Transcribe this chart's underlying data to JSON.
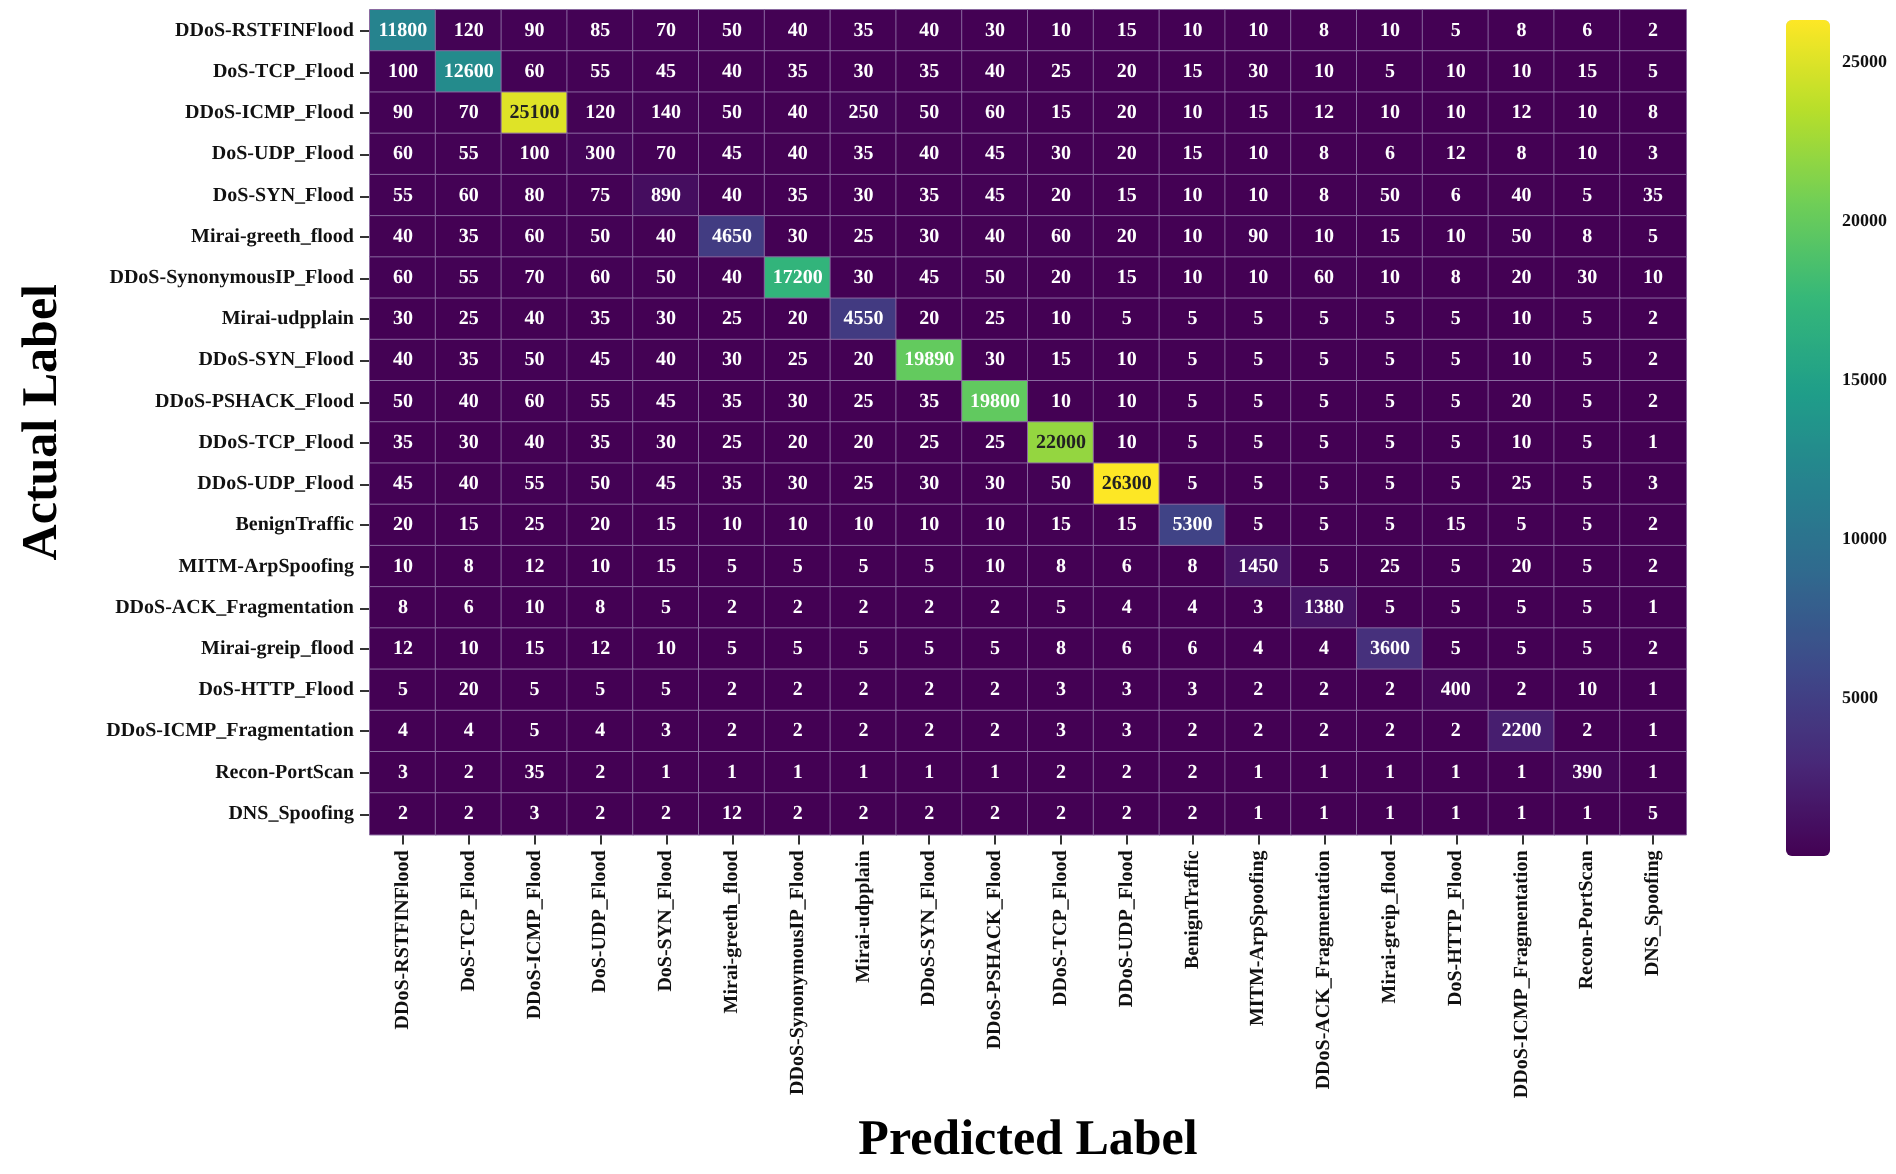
{
  "chart_data": {
    "type": "heatmap",
    "xlabel": "Predicted Label",
    "ylabel": "Actual Label",
    "categories": [
      "DDoS-RSTFINFlood",
      "DoS-TCP_Flood",
      "DDoS-ICMP_Flood",
      "DoS-UDP_Flood",
      "DoS-SYN_Flood",
      "Mirai-greeth_flood",
      "DDoS-SynonymousIP_Flood",
      "Mirai-udpplain",
      "DDoS-SYN_Flood",
      "DDoS-PSHACK_Flood",
      "DDoS-TCP_Flood",
      "DDoS-UDP_Flood",
      "BenignTraffic",
      "MITM-ArpSpoofing",
      "DDoS-ACK_Fragmentation",
      "Mirai-greip_flood",
      "DoS-HTTP_Flood",
      "DDoS-ICMP_Fragmentation",
      "Recon-PortScan",
      "DNS_Spoofing"
    ],
    "y_categories": [
      "DDoS-RSTFINFlood",
      "DoS-TCP_Flood",
      "DDoS-ICMP_Flood",
      "DoS-UDP_Flood",
      "DoS-SYN_Flood",
      "Mirai-greeth_flood",
      "DDoS-SynonymousIP_Flood",
      "Mirai-udpplain",
      "DDoS-SYN_Flood",
      "DDoS-PSHACK_Flood",
      "DDoS-TCP_Flood",
      "DDoS-UDP_Flood",
      "BenignTraffic",
      "MITM-ArpSpoofing",
      "DDoS-ACK_Fragmentation",
      "Mirai-greip_flood",
      "DoS-HTTP_Flood",
      "DDoS-ICMP_Fragmentation",
      "Recon-PortScan",
      "DNS_Spoofing"
    ],
    "cells": [
      [
        11800,
        120,
        90,
        85,
        70,
        50,
        40,
        35,
        40,
        30,
        10,
        15,
        10,
        10,
        8,
        10,
        5,
        8,
        6,
        2
      ],
      [
        100,
        12600,
        60,
        55,
        45,
        40,
        35,
        30,
        35,
        40,
        25,
        20,
        15,
        30,
        10,
        5,
        10,
        10,
        15,
        5
      ],
      [
        90,
        70,
        25100,
        120,
        140,
        50,
        40,
        250,
        50,
        60,
        15,
        20,
        10,
        15,
        12,
        10,
        10,
        12,
        10,
        8
      ],
      [
        60,
        55,
        100,
        300,
        70,
        45,
        40,
        35,
        40,
        45,
        30,
        20,
        15,
        10,
        8,
        6,
        12,
        8,
        10,
        3
      ],
      [
        55,
        60,
        80,
        75,
        890,
        40,
        35,
        30,
        35,
        45,
        20,
        15,
        10,
        10,
        8,
        50,
        6,
        40,
        5,
        35
      ],
      [
        40,
        35,
        60,
        50,
        40,
        4650,
        30,
        25,
        30,
        40,
        60,
        20,
        10,
        90,
        10,
        15,
        10,
        50,
        8,
        5
      ],
      [
        60,
        55,
        70,
        60,
        50,
        40,
        17200,
        30,
        45,
        50,
        20,
        15,
        10,
        10,
        60,
        10,
        8,
        20,
        30,
        10
      ],
      [
        30,
        25,
        40,
        35,
        30,
        25,
        20,
        4550,
        20,
        25,
        10,
        5,
        5,
        5,
        5,
        5,
        5,
        10,
        5,
        2
      ],
      [
        40,
        35,
        50,
        45,
        40,
        30,
        25,
        20,
        19890,
        30,
        15,
        10,
        5,
        5,
        5,
        5,
        5,
        10,
        5,
        2
      ],
      [
        50,
        40,
        60,
        55,
        45,
        35,
        30,
        25,
        35,
        19800,
        10,
        10,
        5,
        5,
        5,
        5,
        5,
        20,
        5,
        2
      ],
      [
        35,
        30,
        40,
        35,
        30,
        25,
        20,
        20,
        25,
        25,
        22000,
        10,
        5,
        5,
        5,
        5,
        5,
        10,
        5,
        1
      ],
      [
        45,
        40,
        55,
        50,
        45,
        35,
        30,
        25,
        30,
        30,
        50,
        26300,
        5,
        5,
        5,
        5,
        5,
        25,
        5,
        3
      ],
      [
        20,
        15,
        25,
        20,
        15,
        10,
        10,
        10,
        10,
        10,
        15,
        15,
        5300,
        5,
        5,
        5,
        15,
        5,
        5,
        2
      ],
      [
        10,
        8,
        12,
        10,
        15,
        5,
        5,
        5,
        5,
        10,
        8,
        6,
        8,
        1450,
        5,
        25,
        5,
        20,
        5,
        2
      ],
      [
        8,
        6,
        10,
        8,
        5,
        2,
        2,
        2,
        2,
        2,
        5,
        4,
        4,
        3,
        1380,
        5,
        5,
        5,
        5,
        1
      ],
      [
        12,
        10,
        15,
        12,
        10,
        5,
        5,
        5,
        5,
        5,
        8,
        6,
        6,
        4,
        4,
        3600,
        5,
        5,
        5,
        2
      ],
      [
        5,
        20,
        5,
        5,
        5,
        2,
        2,
        2,
        2,
        2,
        3,
        3,
        3,
        2,
        2,
        2,
        400,
        2,
        10,
        1
      ],
      [
        4,
        4,
        5,
        4,
        3,
        2,
        2,
        2,
        2,
        2,
        3,
        3,
        2,
        2,
        2,
        2,
        2,
        2200,
        2,
        1
      ],
      [
        3,
        2,
        35,
        2,
        1,
        1,
        1,
        1,
        1,
        1,
        2,
        2,
        2,
        1,
        1,
        1,
        1,
        1,
        390,
        1
      ],
      [
        2,
        2,
        3,
        2,
        2,
        12,
        2,
        2,
        2,
        2,
        2,
        2,
        2,
        1,
        1,
        1,
        1,
        1,
        1,
        5
      ]
    ],
    "clim": [
      1,
      26300
    ],
    "cticks": [
      5000,
      10000,
      15000,
      20000,
      25000
    ],
    "data_labels": true
  }
}
